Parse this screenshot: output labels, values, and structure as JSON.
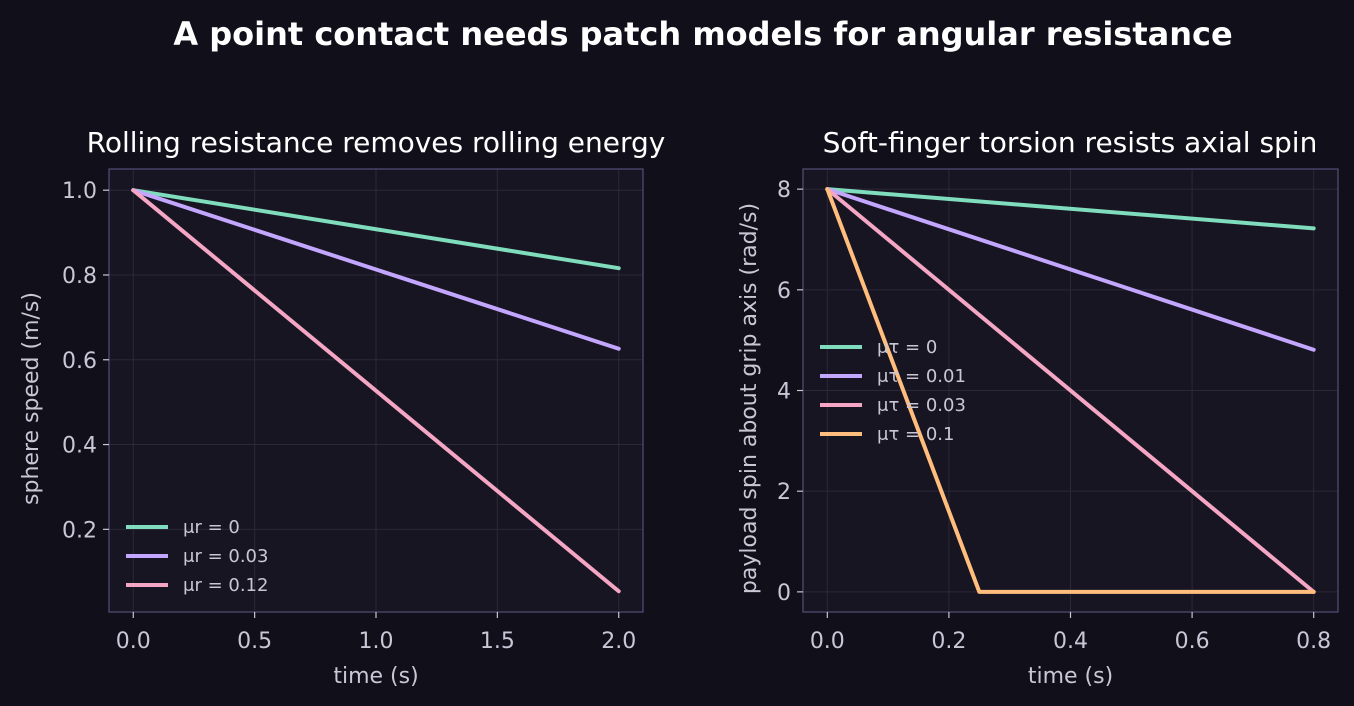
{
  "figure": {
    "suptitle": "A point contact needs patch models for angular resistance"
  },
  "colors": {
    "background": "#110f1a",
    "axes_face": "#181522",
    "axes_edge": "#4f4a70",
    "grid": "#2b2838",
    "text": "#ffffff",
    "tick_text": "#c9c6d6",
    "legend_text": "#c9c6d6"
  },
  "chart_data": [
    {
      "type": "line",
      "title": "Rolling resistance removes rolling energy",
      "xlabel": "time (s)",
      "ylabel": "sphere speed (m/s)",
      "xlim": [
        -0.1,
        2.1
      ],
      "ylim": [
        0.005,
        1.05
      ],
      "xticks": [
        0.0,
        0.5,
        1.0,
        1.5,
        2.0
      ],
      "xtick_labels": [
        "0.0",
        "0.5",
        "1.0",
        "1.5",
        "2.0"
      ],
      "yticks": [
        0.2,
        0.4,
        0.6,
        0.8,
        1.0
      ],
      "ytick_labels": [
        "0.2",
        "0.4",
        "0.6",
        "0.8",
        "1.0"
      ],
      "grid": true,
      "legend_placement": "lower-left",
      "series": [
        {
          "name": "μr = 0",
          "color": "#7fdcbc",
          "x": [
            0.0,
            2.0
          ],
          "y": [
            1.0,
            0.816
          ]
        },
        {
          "name": "μr = 0.03",
          "color": "#c3a6ff",
          "x": [
            0.0,
            2.0
          ],
          "y": [
            1.0,
            0.626
          ]
        },
        {
          "name": "μr = 0.12",
          "color": "#f4a6c4",
          "x": [
            0.0,
            2.0
          ],
          "y": [
            1.0,
            0.054
          ]
        }
      ]
    },
    {
      "type": "line",
      "title": "Soft-finger torsion resists axial spin",
      "xlabel": "time (s)",
      "ylabel": "payload spin about grip axis (rad/s)",
      "xlim": [
        -0.04,
        0.84
      ],
      "ylim": [
        -0.4,
        8.4
      ],
      "xticks": [
        0.0,
        0.2,
        0.4,
        0.6,
        0.8
      ],
      "xtick_labels": [
        "0.0",
        "0.2",
        "0.4",
        "0.6",
        "0.8"
      ],
      "yticks": [
        0,
        2,
        4,
        6,
        8
      ],
      "ytick_labels": [
        "0",
        "2",
        "4",
        "6",
        "8"
      ],
      "grid": true,
      "legend_placement": "center-left",
      "series": [
        {
          "name": "μτ = 0",
          "color": "#7fdcbc",
          "x": [
            0.0,
            0.8
          ],
          "y": [
            8.0,
            7.22
          ]
        },
        {
          "name": "μτ = 0.01",
          "color": "#c3a6ff",
          "x": [
            0.0,
            0.8
          ],
          "y": [
            8.0,
            4.81
          ]
        },
        {
          "name": "μτ = 0.03",
          "color": "#f4a6c4",
          "x": [
            0.0,
            0.8
          ],
          "y": [
            8.0,
            0.0
          ]
        },
        {
          "name": "μτ = 0.1",
          "color": "#ffbe7d",
          "x": [
            0.0,
            0.25,
            0.8
          ],
          "y": [
            8.0,
            0.0,
            0.0
          ]
        }
      ]
    }
  ]
}
